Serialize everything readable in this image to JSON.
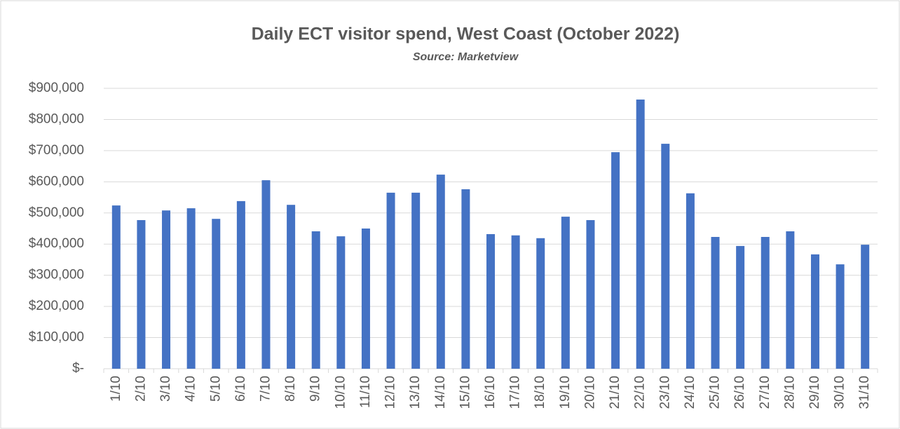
{
  "chart_data": {
    "type": "bar",
    "title": "Daily ECT visitor spend, West Coast (October 2022)",
    "subtitle": "Source: Marketview",
    "categories": [
      "1/10",
      "2/10",
      "3/10",
      "4/10",
      "5/10",
      "6/10",
      "7/10",
      "8/10",
      "9/10",
      "10/10",
      "11/10",
      "12/10",
      "13/10",
      "14/10",
      "15/10",
      "16/10",
      "17/10",
      "18/10",
      "19/10",
      "20/10",
      "21/10",
      "22/10",
      "23/10",
      "24/10",
      "25/10",
      "26/10",
      "27/10",
      "28/10",
      "29/10",
      "30/10",
      "31/10"
    ],
    "values": [
      524000,
      477000,
      508000,
      515000,
      481000,
      538000,
      605000,
      526000,
      441000,
      425000,
      450000,
      565000,
      565000,
      623000,
      576000,
      432000,
      428000,
      419000,
      488000,
      477000,
      695000,
      864000,
      722000,
      563000,
      423000,
      394000,
      423000,
      441000,
      367000,
      335000,
      398000
    ],
    "color": "#4472c4",
    "ylim": [
      0,
      900000
    ],
    "yticks": [
      {
        "value": 0,
        "label": "$-"
      },
      {
        "value": 100000,
        "label": "$100,000"
      },
      {
        "value": 200000,
        "label": "$200,000"
      },
      {
        "value": 300000,
        "label": "$300,000"
      },
      {
        "value": 400000,
        "label": "$400,000"
      },
      {
        "value": 500000,
        "label": "$500,000"
      },
      {
        "value": 600000,
        "label": "$600,000"
      },
      {
        "value": 700000,
        "label": "$700,000"
      },
      {
        "value": 800000,
        "label": "$800,000"
      },
      {
        "value": 900000,
        "label": "$900,000"
      }
    ],
    "grid": true
  }
}
